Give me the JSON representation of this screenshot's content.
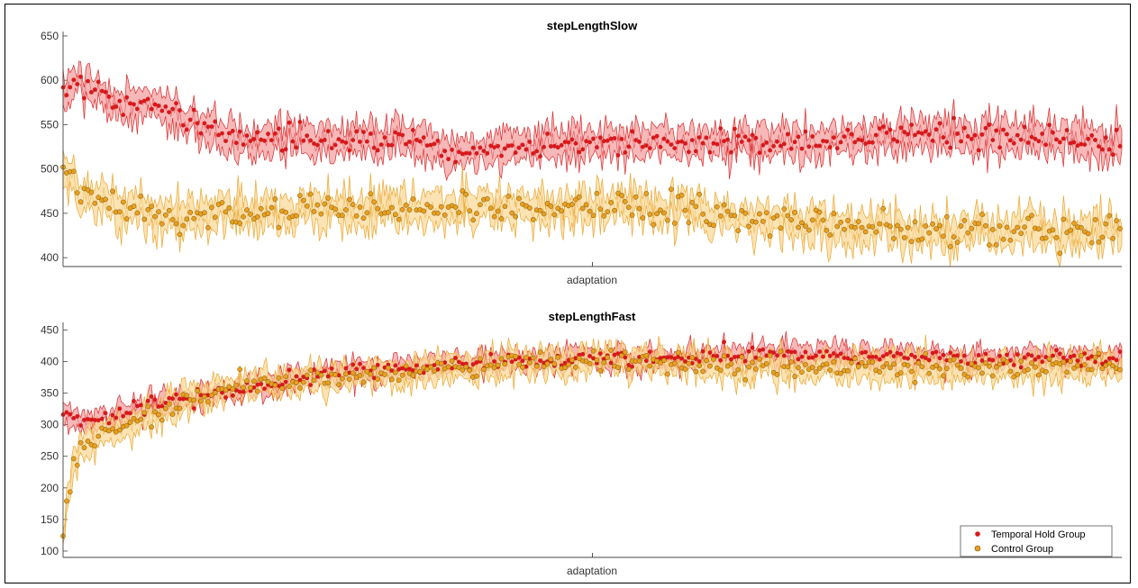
{
  "chart_data": [
    {
      "type": "line",
      "title": "stepLengthSlow",
      "xlabel": "adaptation",
      "ylabel": "",
      "ylim": [
        390,
        655
      ],
      "yticks": [
        400,
        450,
        500,
        550,
        600,
        650
      ],
      "x_count": 600,
      "series": [
        {
          "name": "Temporal Hold Group",
          "color": "#d7191c",
          "band_color": "#f4a0a0",
          "trend": [
            [
              0,
              585
            ],
            [
              10,
              600
            ],
            [
              30,
              590
            ],
            [
              60,
              570
            ],
            [
              100,
              575
            ],
            [
              140,
              550
            ],
            [
              200,
              530
            ],
            [
              300,
              535
            ],
            [
              380,
              535
            ],
            [
              430,
              520
            ],
            [
              480,
              520
            ],
            [
              560,
              530
            ],
            [
              700,
              530
            ],
            [
              800,
              530
            ],
            [
              900,
              535
            ],
            [
              1000,
              540
            ],
            [
              1100,
              535
            ],
            [
              1200,
              530
            ]
          ],
          "noise": 12,
          "band": 18
        },
        {
          "name": "Control Group",
          "color": "#e8a020",
          "band_color": "#fbd99a",
          "trend": [
            [
              0,
              500
            ],
            [
              20,
              470
            ],
            [
              60,
              455
            ],
            [
              130,
              445
            ],
            [
              200,
              450
            ],
            [
              300,
              455
            ],
            [
              400,
              455
            ],
            [
              470,
              460
            ],
            [
              550,
              455
            ],
            [
              650,
              460
            ],
            [
              720,
              460
            ],
            [
              730,
              445
            ],
            [
              800,
              440
            ],
            [
              900,
              435
            ],
            [
              1000,
              430
            ],
            [
              1100,
              430
            ],
            [
              1200,
              430
            ]
          ],
          "noise": 14,
          "band": 18
        }
      ]
    },
    {
      "type": "line",
      "title": "stepLengthFast",
      "xlabel": "adaptation",
      "ylabel": "",
      "ylim": [
        90,
        462
      ],
      "yticks": [
        100,
        150,
        200,
        250,
        300,
        350,
        400,
        450
      ],
      "x_count": 600,
      "series": [
        {
          "name": "Temporal Hold Group",
          "color": "#d7191c",
          "band_color": "#f4a0a0",
          "trend": [
            [
              0,
              315
            ],
            [
              10,
              310
            ],
            [
              40,
              305
            ],
            [
              100,
              330
            ],
            [
              200,
              355
            ],
            [
              300,
              380
            ],
            [
              400,
              390
            ],
            [
              500,
              400
            ],
            [
              600,
              405
            ],
            [
              700,
              405
            ],
            [
              800,
              415
            ],
            [
              900,
              410
            ],
            [
              1000,
              405
            ],
            [
              1100,
              405
            ],
            [
              1200,
              405
            ]
          ],
          "noise": 10,
          "band": 16
        },
        {
          "name": "Control Group",
          "color": "#e8a020",
          "band_color": "#fbd99a",
          "trend": [
            [
              0,
              130
            ],
            [
              6,
              200
            ],
            [
              14,
              240
            ],
            [
              30,
              275
            ],
            [
              80,
              300
            ],
            [
              140,
              340
            ],
            [
              200,
              360
            ],
            [
              300,
              375
            ],
            [
              400,
              385
            ],
            [
              500,
              395
            ],
            [
              600,
              400
            ],
            [
              700,
              400
            ],
            [
              760,
              395
            ],
            [
              800,
              390
            ],
            [
              900,
              390
            ],
            [
              1000,
              390
            ],
            [
              1100,
              390
            ],
            [
              1200,
              395
            ]
          ],
          "noise": 14,
          "band": 20
        }
      ],
      "legend": {
        "position": "bottom-right",
        "entries": [
          "Temporal Hold Group",
          "Control Group"
        ]
      }
    }
  ]
}
